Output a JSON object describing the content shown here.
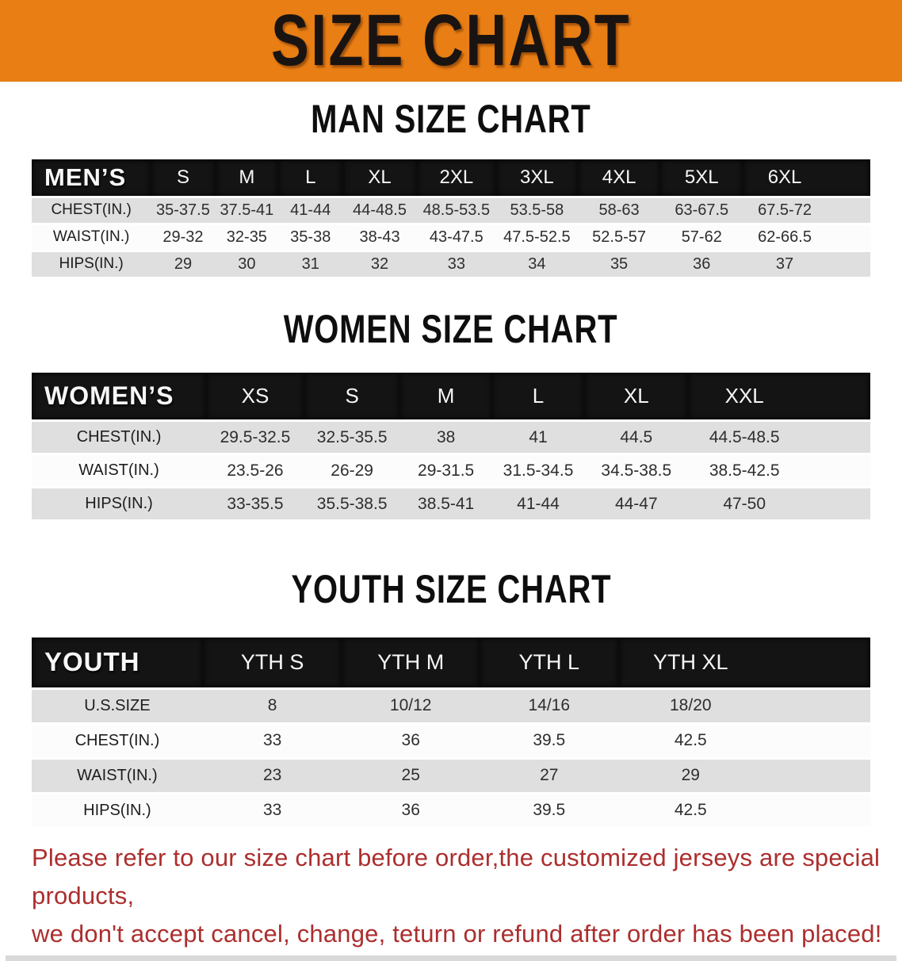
{
  "banner": {
    "title": "SIZE CHART"
  },
  "colors": {
    "banner_bg": "#e87e14",
    "table_header_bg": "#141414",
    "stripe_row": "#dfdfdf",
    "disclaimer_text": "#ac2e2e",
    "bottom_bar": "#d9d9d9"
  },
  "chart_data": [
    {
      "type": "table",
      "title": "MAN SIZE CHART",
      "columns": [
        "MEN’S",
        "S",
        "M",
        "L",
        "XL",
        "2XL",
        "3XL",
        "4XL",
        "5XL",
        "6XL"
      ],
      "rows": [
        [
          "CHEST(IN.)",
          "35-37.5",
          "37.5-41",
          "41-44",
          "44-48.5",
          "48.5-53.5",
          "53.5-58",
          "58-63",
          "63-67.5",
          "67.5-72"
        ],
        [
          "WAIST(IN.)",
          "29-32",
          "32-35",
          "35-38",
          "38-43",
          "43-47.5",
          "47.5-52.5",
          "52.5-57",
          "57-62",
          "62-66.5"
        ],
        [
          "HIPS(IN.)",
          "29",
          "30",
          "31",
          "32",
          "33",
          "34",
          "35",
          "36",
          "37"
        ]
      ]
    },
    {
      "type": "table",
      "title": "WOMEN SIZE CHART",
      "columns": [
        "WOMEN’S",
        "XS",
        "S",
        "M",
        "L",
        "XL",
        "XXL"
      ],
      "rows": [
        [
          "CHEST(IN.)",
          "29.5-32.5",
          "32.5-35.5",
          "38",
          "41",
          "44.5",
          "44.5-48.5"
        ],
        [
          "WAIST(IN.)",
          "23.5-26",
          "26-29",
          "29-31.5",
          "31.5-34.5",
          "34.5-38.5",
          "38.5-42.5"
        ],
        [
          "HIPS(IN.)",
          "33-35.5",
          "35.5-38.5",
          "38.5-41",
          "41-44",
          "44-47",
          "47-50"
        ]
      ]
    },
    {
      "type": "table",
      "title": "YOUTH SIZE CHART",
      "columns": [
        "YOUTH",
        "YTH S",
        "YTH M",
        "YTH L",
        "YTH XL"
      ],
      "rows": [
        [
          "U.S.SIZE",
          "8",
          "10/12",
          "14/16",
          "18/20"
        ],
        [
          "CHEST(IN.)",
          "33",
          "36",
          "39.5",
          "42.5"
        ],
        [
          "WAIST(IN.)",
          "23",
          "25",
          "27",
          "29"
        ],
        [
          "HIPS(IN.)",
          "33",
          "36",
          "39.5",
          "42.5"
        ]
      ]
    }
  ],
  "disclaimer": {
    "line1": "Please refer to our size chart before order,the customized jerseys are special products,",
    "line2": "we don't accept cancel, change, teturn or refund after order has been placed!"
  }
}
